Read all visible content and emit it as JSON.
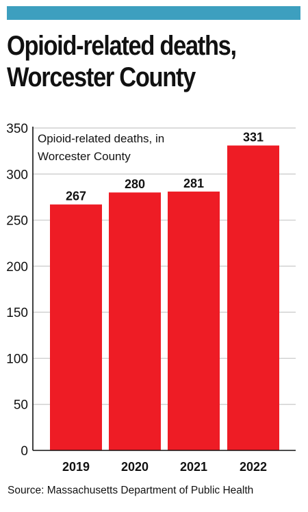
{
  "header": {
    "title_line1": "Opioid-related deaths,",
    "title_line2": "Worcester County"
  },
  "colors": {
    "accent_bar": "#3d9fbf",
    "bar": "#ee1c25",
    "grid": "#c8c8c8",
    "text": "#111111"
  },
  "chart_data": {
    "type": "bar",
    "categories": [
      "2019",
      "2020",
      "2021",
      "2022"
    ],
    "values": [
      267,
      280,
      281,
      331
    ],
    "data_labels": [
      "267",
      "280",
      "281",
      "331"
    ],
    "annotation_line1": "Opioid-related deaths, in",
    "annotation_line2": "Worcester County",
    "ylim": [
      0,
      350
    ],
    "yticks": [
      "0",
      "50",
      "100",
      "150",
      "200",
      "250",
      "300",
      "350"
    ],
    "grid": true
  },
  "footer": {
    "source": "Source: Massachusetts Department of Public Health"
  }
}
